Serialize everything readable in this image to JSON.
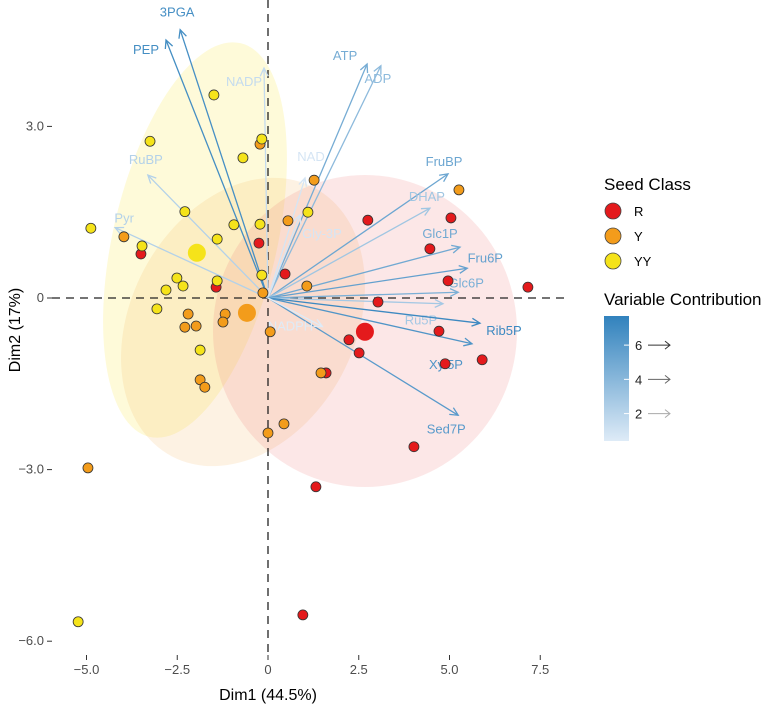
{
  "chart_data": {
    "type": "scatter",
    "subtype": "pca-biplot",
    "xlabel": "Dim1 (44.5%)",
    "ylabel": "Dim2 (17%)",
    "xlim": [
      -5.4,
      8.3
    ],
    "ylim": [
      -6.2,
      5.2
    ],
    "xticks": [
      {
        "v": -5,
        "label": "−5.0"
      },
      {
        "v": -2.5,
        "label": "−2.5"
      },
      {
        "v": 0,
        "label": "0"
      },
      {
        "v": 2.5,
        "label": "2.5"
      },
      {
        "v": 5,
        "label": "5.0"
      },
      {
        "v": 7.5,
        "label": "7.5"
      }
    ],
    "yticks": [
      {
        "v": 3,
        "label": "3.0"
      },
      {
        "v": 0,
        "label": "0"
      },
      {
        "v": -3,
        "label": "−3.0"
      },
      {
        "v": -6,
        "label": "−6.0"
      }
    ],
    "groups": [
      {
        "name": "R",
        "color": "#E41A1C",
        "centroid": [
          2.67,
          -0.59
        ],
        "points": [
          [
            -3.5,
            0.77
          ],
          [
            -0.25,
            0.96
          ],
          [
            -1.43,
            0.19
          ],
          [
            0.47,
            0.42
          ],
          [
            2.75,
            1.36
          ],
          [
            5.04,
            1.4
          ],
          [
            4.46,
            0.86
          ],
          [
            4.96,
            0.3
          ],
          [
            7.16,
            0.19
          ],
          [
            3.03,
            -0.07
          ],
          [
            2.23,
            -0.73
          ],
          [
            2.51,
            -0.96
          ],
          [
            4.71,
            -0.58
          ],
          [
            5.9,
            -1.08
          ],
          [
            4.88,
            -1.15
          ],
          [
            1.6,
            -1.31
          ],
          [
            4.02,
            -2.6
          ],
          [
            1.32,
            -3.3
          ],
          [
            0.96,
            -5.54
          ]
        ]
      },
      {
        "name": "Y",
        "color": "#F39C1B",
        "centroid": [
          -0.58,
          -0.26
        ],
        "points": [
          [
            -0.22,
            2.69
          ],
          [
            -3.97,
            1.07
          ],
          [
            1.27,
            2.06
          ],
          [
            0.55,
            1.35
          ],
          [
            1.07,
            0.21
          ],
          [
            -0.14,
            0.09
          ],
          [
            5.26,
            1.89
          ],
          [
            0.06,
            -0.59
          ],
          [
            1.46,
            -1.31
          ],
          [
            0.44,
            -2.2
          ],
          [
            0.0,
            -2.36
          ],
          [
            -2.2,
            -0.28
          ],
          [
            -2.29,
            -0.51
          ],
          [
            -1.98,
            -0.49
          ],
          [
            -1.18,
            -0.28
          ],
          [
            -1.24,
            -0.42
          ],
          [
            -1.87,
            -1.43
          ],
          [
            -1.74,
            -1.56
          ],
          [
            -4.96,
            -2.97
          ]
        ]
      },
      {
        "name": "YY",
        "color": "#F5E31A",
        "centroid": [
          -1.96,
          0.79
        ],
        "points": [
          [
            -1.49,
            3.55
          ],
          [
            -3.25,
            2.74
          ],
          [
            -0.17,
            2.78
          ],
          [
            -0.69,
            2.45
          ],
          [
            -2.29,
            1.51
          ],
          [
            -0.94,
            1.28
          ],
          [
            -0.22,
            1.29
          ],
          [
            -1.4,
            1.03
          ],
          [
            -4.88,
            1.22
          ],
          [
            -3.47,
            0.91
          ],
          [
            -2.51,
            0.35
          ],
          [
            -2.81,
            0.14
          ],
          [
            -2.34,
            0.21
          ],
          [
            -1.4,
            0.3
          ],
          [
            -0.17,
            0.4
          ],
          [
            1.1,
            1.5
          ],
          [
            -3.06,
            -0.19
          ],
          [
            -1.87,
            -0.91
          ],
          [
            -5.23,
            -5.66
          ]
        ]
      }
    ],
    "variables": [
      {
        "name": "3PGA",
        "x": -2.42,
        "y": 4.69,
        "contrib": 6.8
      },
      {
        "name": "PEP",
        "x": -2.81,
        "y": 4.51,
        "contrib": 6.9
      },
      {
        "name": "NADP",
        "x": -0.11,
        "y": 4.02,
        "contrib": 1.5
      },
      {
        "name": "ATP",
        "x": 2.73,
        "y": 4.09,
        "contrib": 4.8
      },
      {
        "name": "ADP",
        "x": 3.11,
        "y": 4.06,
        "contrib": 3.8
      },
      {
        "name": "NAD",
        "x": 1.02,
        "y": 2.1,
        "contrib": 0.8
      },
      {
        "name": "Gly-3P",
        "x": 0.88,
        "y": 1.45,
        "contrib": 0.8
      },
      {
        "name": "RuBP",
        "x": -3.31,
        "y": 2.15,
        "contrib": 2.2
      },
      {
        "name": "Pyr",
        "x": -4.21,
        "y": 1.23,
        "contrib": 2.2
      },
      {
        "name": "FruBP",
        "x": 4.96,
        "y": 2.17,
        "contrib": 5.2
      },
      {
        "name": "DHAP",
        "x": 4.46,
        "y": 1.57,
        "contrib": 3.0
      },
      {
        "name": "Glc1P",
        "x": 5.29,
        "y": 0.89,
        "contrib": 5.0
      },
      {
        "name": "Fru6P",
        "x": 5.49,
        "y": 0.52,
        "contrib": 5.6
      },
      {
        "name": "Glc6P",
        "x": 5.24,
        "y": 0.1,
        "contrib": 4.6
      },
      {
        "name": "Ru5P",
        "x": 4.82,
        "y": -0.1,
        "contrib": 2.8
      },
      {
        "name": "Rib5P",
        "x": 5.84,
        "y": -0.44,
        "contrib": 7.2
      },
      {
        "name": "Xyl5P",
        "x": 5.62,
        "y": -0.8,
        "contrib": 6.4
      },
      {
        "name": "Sed7P",
        "x": 5.24,
        "y": -2.05,
        "contrib": 6.0
      },
      {
        "name": "NADPH",
        "x": 1.5,
        "y": -0.5,
        "contrib": 0.3
      }
    ],
    "legend": {
      "position": "right",
      "seed_title": "Seed Class",
      "contrib_title": "Variable Contribution",
      "contrib_range": [
        0.4,
        7.7
      ],
      "contrib_ticks": [
        {
          "v": 6,
          "label": "6"
        },
        {
          "v": 4,
          "label": "4"
        },
        {
          "v": 2,
          "label": "2"
        }
      ],
      "low_color": "#DEEBF7",
      "high_color": "#3182BD"
    }
  }
}
